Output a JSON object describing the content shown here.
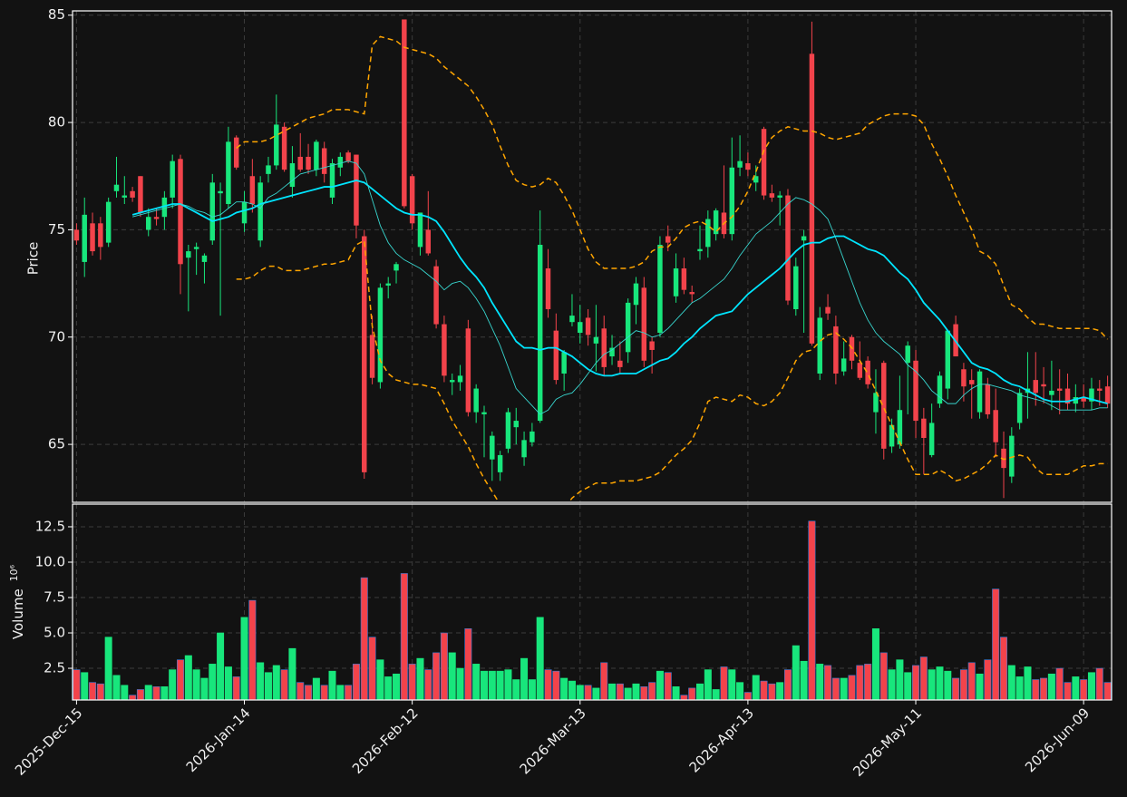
{
  "chart_data": {
    "type": "candlestick",
    "ylabel": "Price",
    "categories": [
      "2025-Dec-15",
      null,
      null,
      null,
      null,
      null,
      null,
      null,
      null,
      null,
      null,
      null,
      null,
      null,
      null,
      null,
      null,
      null,
      null,
      null,
      null,
      "2026-Jan-14",
      null,
      null,
      null,
      null,
      null,
      null,
      null,
      null,
      null,
      null,
      null,
      null,
      null,
      null,
      null,
      null,
      null,
      null,
      null,
      null,
      "2026-Feb-12",
      null,
      null,
      null,
      null,
      null,
      null,
      null,
      null,
      null,
      null,
      null,
      null,
      null,
      null,
      null,
      null,
      null,
      null,
      null,
      null,
      "2026-Mar-13",
      null,
      null,
      null,
      null,
      null,
      null,
      null,
      null,
      null,
      null,
      null,
      null,
      null,
      null,
      null,
      null,
      null,
      null,
      null,
      null,
      "2026-Apr-13",
      null,
      null,
      null,
      null,
      null,
      null,
      null,
      null,
      null,
      null,
      null,
      null,
      null,
      null,
      null,
      null,
      null,
      null,
      null,
      null,
      "2026-May-11",
      null,
      null,
      null,
      null,
      null,
      null,
      null,
      null,
      null,
      null,
      null,
      null,
      null,
      null,
      null,
      null,
      null,
      null,
      null,
      null,
      "2026-Jun-09",
      null,
      null,
      null
    ],
    "xlim": [
      -0.5,
      129.5
    ],
    "ylim": [
      62.3,
      85.2
    ],
    "yticks": [
      65,
      70,
      75,
      80,
      85
    ],
    "grid": true,
    "up_color": "#18e67c",
    "down_color": "#f2434b",
    "open": [
      75.0,
      73.5,
      75.3,
      75.3,
      74.4,
      76.8,
      76.5,
      76.8,
      77.5,
      75.0,
      75.6,
      75.6,
      76.5,
      78.3,
      73.7,
      74.1,
      73.5,
      74.5,
      76.7,
      76.2,
      79.3,
      75.3,
      77.5,
      74.5,
      77.6,
      78.0,
      79.8,
      77.0,
      78.4,
      78.4,
      77.8,
      78.8,
      76.5,
      77.9,
      78.6,
      78.5,
      74.7,
      70.1,
      67.9,
      72.4,
      73.1,
      84.8,
      77.5,
      74.2,
      75.0,
      73.3,
      70.6,
      67.9,
      67.9,
      70.4,
      66.5,
      66.4,
      64.3,
      63.7,
      64.8,
      65.8,
      64.4,
      65.1,
      66.1,
      73.2,
      70.3,
      68.3,
      70.7,
      70.2,
      70.9,
      69.7,
      70.4,
      69.1,
      68.9,
      69.3,
      71.5,
      72.3,
      69.8,
      70.2,
      74.7,
      71.9,
      73.2,
      72.1,
      74.0,
      74.2,
      74.8,
      75.8,
      74.8,
      77.9,
      78.1,
      77.2,
      79.7,
      76.7,
      76.5,
      76.6,
      71.3,
      74.5,
      83.2,
      68.3,
      71.4,
      70.5,
      68.4,
      70.0,
      68.8,
      68.9,
      66.5,
      68.8,
      64.9,
      65.0,
      68.8,
      68.9,
      66.2,
      64.5,
      66.9,
      67.6,
      70.6,
      68.5,
      68.0,
      66.5,
      67.8,
      66.6,
      64.8,
      63.5,
      66.0,
      67.4,
      68.0,
      67.8,
      67.3,
      67.6,
      67.6,
      66.9,
      67.2,
      67.0,
      67.6,
      67.7
    ],
    "high": [
      75.3,
      76.5,
      75.8,
      75.6,
      76.5,
      78.4,
      77.5,
      77.0,
      77.5,
      76.0,
      76.0,
      76.8,
      78.5,
      78.5,
      74.3,
      74.4,
      73.9,
      77.6,
      77.2,
      79.8,
      79.4,
      76.8,
      78.3,
      77.5,
      78.4,
      81.3,
      80.0,
      78.9,
      79.5,
      79.0,
      79.2,
      79.1,
      78.3,
      78.6,
      78.7,
      78.5,
      75.0,
      71.0,
      72.5,
      72.8,
      73.5,
      84.8,
      77.6,
      75.8,
      76.8,
      73.6,
      71.0,
      68.3,
      68.7,
      70.8,
      67.8,
      66.8,
      65.6,
      64.7,
      66.7,
      66.7,
      65.6,
      66.0,
      75.9,
      74.1,
      71.1,
      69.4,
      72.0,
      71.5,
      71.3,
      71.5,
      71.0,
      70.1,
      69.8,
      71.8,
      72.8,
      72.8,
      70.0,
      74.7,
      75.2,
      73.9,
      73.7,
      72.4,
      75.2,
      75.9,
      76.0,
      78.0,
      79.3,
      79.4,
      78.6,
      78.0,
      79.8,
      77.1,
      76.8,
      76.9,
      73.7,
      75.0,
      84.7,
      71.4,
      72.0,
      71.0,
      69.8,
      70.1,
      69.8,
      69.1,
      68.5,
      68.9,
      66.2,
      68.2,
      69.8,
      69.4,
      66.7,
      66.9,
      68.4,
      70.3,
      71.0,
      68.8,
      68.5,
      68.5,
      68.1,
      67.6,
      65.6,
      65.8,
      67.6,
      69.3,
      69.3,
      68.6,
      68.9,
      68.5,
      68.3,
      67.8,
      67.8,
      68.1,
      68.0,
      68.2
    ],
    "low": [
      74.3,
      72.8,
      73.8,
      73.6,
      74.2,
      76.5,
      76.2,
      76.3,
      75.6,
      74.7,
      75.2,
      75.0,
      76.0,
      72.0,
      71.2,
      72.9,
      72.5,
      74.3,
      71.0,
      76.0,
      77.8,
      74.9,
      75.8,
      74.2,
      77.2,
      77.8,
      77.7,
      76.5,
      77.7,
      77.6,
      77.5,
      77.2,
      76.2,
      77.5,
      78.1,
      74.6,
      63.4,
      67.8,
      67.6,
      71.8,
      72.5,
      76.0,
      75.0,
      73.8,
      73.8,
      70.4,
      67.9,
      67.3,
      67.5,
      66.3,
      66.0,
      64.4,
      63.3,
      63.3,
      64.6,
      65.0,
      64.0,
      64.9,
      66.0,
      70.9,
      67.8,
      67.5,
      70.5,
      69.7,
      69.6,
      68.4,
      68.2,
      68.7,
      68.3,
      68.8,
      70.6,
      68.6,
      68.3,
      70.0,
      74.0,
      71.6,
      72.0,
      71.6,
      73.6,
      73.7,
      74.5,
      74.6,
      74.5,
      77.5,
      77.5,
      76.8,
      76.4,
      76.3,
      75.2,
      71.5,
      71.0,
      70.2,
      69.6,
      68.0,
      70.8,
      67.8,
      68.2,
      68.5,
      68.0,
      67.6,
      65.5,
      64.3,
      64.6,
      64.8,
      66.4,
      65.3,
      63.6,
      64.4,
      66.7,
      67.1,
      69.1,
      67.0,
      66.2,
      66.2,
      66.2,
      64.4,
      62.5,
      63.2,
      65.7,
      66.2,
      66.8,
      66.9,
      66.6,
      66.4,
      66.6,
      66.5,
      66.7,
      66.6,
      66.8,
      66.7
    ],
    "close": [
      74.5,
      75.7,
      74.0,
      74.2,
      76.3,
      77.1,
      76.6,
      76.5,
      75.8,
      75.6,
      75.5,
      76.5,
      78.2,
      73.4,
      74.0,
      74.2,
      73.8,
      77.2,
      76.8,
      79.1,
      77.9,
      76.3,
      76.2,
      77.2,
      78.0,
      79.9,
      77.8,
      78.1,
      77.8,
      77.8,
      79.1,
      77.6,
      78.1,
      78.4,
      78.2,
      75.2,
      63.7,
      68.1,
      72.3,
      72.5,
      73.4,
      76.1,
      75.3,
      75.8,
      73.9,
      70.6,
      68.2,
      68.0,
      68.2,
      66.5,
      67.6,
      66.5,
      65.4,
      64.5,
      66.5,
      66.1,
      65.2,
      65.6,
      74.3,
      71.3,
      68.0,
      69.3,
      71.0,
      70.7,
      70.1,
      70.0,
      68.6,
      69.5,
      68.6,
      71.6,
      72.5,
      68.9,
      69.4,
      74.3,
      74.4,
      73.2,
      72.2,
      72.0,
      74.1,
      75.5,
      75.9,
      74.8,
      77.9,
      78.2,
      77.8,
      77.5,
      76.6,
      76.5,
      76.6,
      71.7,
      73.3,
      74.7,
      69.7,
      70.9,
      71.1,
      68.3,
      69.0,
      68.9,
      68.1,
      67.8,
      67.4,
      64.8,
      65.9,
      66.6,
      69.6,
      66.1,
      65.3,
      66.0,
      68.2,
      70.3,
      69.1,
      67.7,
      67.8,
      68.4,
      66.4,
      65.1,
      63.9,
      65.4,
      67.4,
      67.6,
      67.4,
      67.7,
      67.5,
      67.5,
      66.9,
      67.2,
      67.0,
      67.6,
      67.5,
      66.9
    ],
    "lines": [
      {
        "color": "#00e5ff",
        "width": 1.8,
        "values": [
          null,
          null,
          null,
          null,
          null,
          null,
          null,
          75.7,
          75.8,
          75.9,
          76.0,
          76.1,
          76.2,
          76.2,
          76.0,
          75.8,
          75.6,
          75.4,
          75.5,
          75.6,
          75.8,
          75.9,
          76.0,
          76.2,
          76.3,
          76.4,
          76.5,
          76.6,
          76.7,
          76.8,
          76.9,
          77.0,
          77.0,
          77.1,
          77.2,
          77.3,
          77.2,
          76.9,
          76.6,
          76.3,
          76.0,
          75.8,
          75.7,
          75.7,
          75.6,
          75.4,
          74.9,
          74.3,
          73.7,
          73.2,
          72.8,
          72.3,
          71.6,
          71.0,
          70.4,
          69.8,
          69.5,
          69.5,
          69.4,
          69.5,
          69.5,
          69.3,
          69.1,
          68.8,
          68.5,
          68.3,
          68.2,
          68.2,
          68.3,
          68.3,
          68.3,
          68.5,
          68.7,
          68.9,
          69.0,
          69.3,
          69.7,
          70.0,
          70.4,
          70.7,
          71.0,
          71.1,
          71.2,
          71.6,
          72.0,
          72.3,
          72.6,
          72.9,
          73.2,
          73.6,
          74.0,
          74.3,
          74.4,
          74.4,
          74.6,
          74.7,
          74.7,
          74.5,
          74.3,
          74.1,
          74.0,
          73.8,
          73.4,
          73.0,
          72.7,
          72.2,
          71.6,
          71.2,
          70.8,
          70.3,
          69.8,
          69.3,
          68.8,
          68.6,
          68.5,
          68.3,
          68.0,
          67.8,
          67.7,
          67.5,
          67.3,
          67.1,
          67.0,
          67.0,
          67.0,
          67.1,
          67.2,
          67.1,
          67.0,
          66.9
        ]
      },
      {
        "color": "#38d6cf",
        "width": 0.9,
        "values": [
          null,
          null,
          null,
          null,
          null,
          null,
          null,
          75.6,
          75.7,
          75.8,
          75.9,
          76.0,
          76.1,
          76.2,
          76.1,
          75.9,
          75.8,
          75.6,
          75.7,
          76.0,
          76.3,
          76.3,
          76.2,
          76.0,
          76.5,
          76.7,
          77.0,
          77.3,
          77.6,
          77.7,
          77.8,
          77.9,
          78.0,
          78.1,
          78.2,
          78.1,
          77.6,
          76.4,
          75.2,
          74.4,
          73.9,
          73.6,
          73.4,
          73.2,
          72.9,
          72.6,
          72.2,
          72.5,
          72.6,
          72.3,
          71.8,
          71.2,
          70.4,
          69.6,
          68.6,
          67.6,
          67.2,
          66.8,
          66.4,
          66.6,
          67.1,
          67.3,
          67.4,
          67.8,
          68.3,
          68.8,
          69.2,
          69.4,
          69.7,
          70.0,
          70.3,
          70.2,
          70.0,
          70.1,
          70.4,
          70.8,
          71.2,
          71.6,
          71.8,
          72.1,
          72.4,
          72.7,
          73.2,
          73.8,
          74.3,
          74.8,
          75.1,
          75.4,
          75.8,
          76.2,
          76.5,
          76.4,
          76.2,
          75.9,
          75.5,
          74.6,
          73.6,
          72.6,
          71.6,
          70.8,
          70.2,
          69.8,
          69.5,
          69.2,
          68.7,
          68.4,
          68.0,
          67.5,
          67.2,
          66.9,
          66.9,
          67.3,
          67.6,
          67.8,
          67.8,
          67.7,
          67.6,
          67.5,
          67.3,
          67.2,
          67.1,
          67.0,
          66.8,
          66.6,
          66.6,
          66.6,
          66.6,
          66.6,
          66.7,
          66.7
        ]
      },
      {
        "color": "#ffa500",
        "width": 1.5,
        "dashed": true,
        "values": [
          null,
          null,
          null,
          null,
          null,
          null,
          null,
          null,
          null,
          null,
          null,
          null,
          null,
          null,
          null,
          null,
          null,
          null,
          null,
          null,
          78.8,
          79.1,
          79.1,
          79.1,
          79.2,
          79.4,
          79.6,
          79.8,
          80.0,
          80.2,
          80.3,
          80.4,
          80.6,
          80.6,
          80.6,
          80.5,
          80.4,
          83.6,
          84.0,
          83.9,
          83.8,
          83.5,
          83.4,
          83.3,
          83.2,
          83.0,
          82.6,
          82.3,
          82.0,
          81.7,
          81.2,
          80.6,
          79.9,
          78.9,
          78.0,
          77.3,
          77.1,
          77.0,
          77.1,
          77.4,
          77.2,
          76.6,
          75.9,
          75.0,
          74.1,
          73.5,
          73.2,
          73.2,
          73.2,
          73.2,
          73.3,
          73.5,
          74.0,
          74.2,
          74.2,
          74.6,
          75.1,
          75.3,
          75.4,
          75.2,
          74.9,
          75.3,
          75.6,
          76.1,
          76.8,
          77.7,
          78.7,
          79.3,
          79.6,
          79.8,
          79.7,
          79.6,
          79.6,
          79.5,
          79.3,
          79.2,
          79.3,
          79.4,
          79.5,
          79.9,
          80.1,
          80.3,
          80.4,
          80.4,
          80.4,
          80.3,
          79.9,
          79.0,
          78.3,
          77.5,
          76.6,
          75.8,
          75.0,
          74.0,
          73.8,
          73.4,
          72.4,
          71.5,
          71.3,
          70.9,
          70.6,
          70.6,
          70.5,
          70.4,
          70.4,
          70.4,
          70.4,
          70.4,
          70.3,
          69.9
        ]
      },
      {
        "color": "#ffa500",
        "width": 1.5,
        "dashed": true,
        "values": [
          null,
          null,
          null,
          null,
          null,
          null,
          null,
          null,
          null,
          null,
          null,
          null,
          null,
          null,
          null,
          null,
          null,
          null,
          null,
          null,
          72.7,
          72.7,
          72.8,
          73.1,
          73.3,
          73.3,
          73.1,
          73.1,
          73.1,
          73.2,
          73.3,
          73.4,
          73.4,
          73.5,
          73.6,
          74.3,
          74.5,
          70.5,
          68.9,
          68.3,
          68.0,
          67.9,
          67.8,
          67.8,
          67.7,
          67.6,
          66.9,
          66.1,
          65.5,
          64.9,
          64.1,
          63.4,
          62.8,
          62.2,
          61.8,
          61.5,
          61.3,
          61.2,
          61.2,
          61.3,
          61.6,
          62.0,
          62.5,
          62.8,
          63.0,
          63.2,
          63.2,
          63.2,
          63.3,
          63.3,
          63.3,
          63.4,
          63.5,
          63.7,
          64.1,
          64.5,
          64.8,
          65.2,
          66.0,
          67.0,
          67.2,
          67.1,
          67.0,
          67.3,
          67.2,
          66.9,
          66.8,
          67.0,
          67.4,
          68.1,
          68.9,
          69.3,
          69.4,
          69.8,
          70.1,
          70.2,
          69.9,
          69.5,
          68.9,
          68.3,
          67.5,
          66.7,
          65.9,
          65.1,
          64.3,
          63.6,
          63.6,
          63.6,
          63.8,
          63.6,
          63.3,
          63.4,
          63.6,
          63.8,
          64.1,
          64.5,
          64.3,
          64.4,
          64.5,
          64.4,
          63.9,
          63.6,
          63.6,
          63.6,
          63.6,
          63.8,
          64.0,
          64.0,
          64.1,
          64.1
        ]
      }
    ],
    "volume": {
      "ylabel": "Volume",
      "offset_text": "10⁶",
      "edge_color": "#3b7bd6",
      "ylim": [
        0.26,
        14.1
      ],
      "yticks": [
        2.5,
        {
          "value": 5,
          "label": "5.0"
        },
        7.5,
        {
          "value": 10,
          "label": "10.0"
        },
        12.5
      ],
      "values": [
        2.4,
        2.2,
        1.5,
        1.4,
        4.7,
        2.0,
        1.3,
        0.6,
        1.0,
        1.3,
        1.2,
        1.2,
        2.4,
        3.1,
        3.4,
        2.4,
        1.8,
        2.8,
        5.0,
        2.6,
        1.9,
        6.1,
        7.3,
        2.9,
        2.2,
        2.7,
        2.4,
        3.9,
        1.5,
        1.3,
        1.8,
        1.3,
        2.3,
        1.3,
        1.3,
        2.8,
        8.9,
        4.7,
        3.1,
        1.9,
        2.1,
        9.2,
        2.8,
        3.2,
        2.4,
        3.6,
        5.0,
        3.6,
        2.5,
        5.3,
        2.8,
        2.3,
        2.3,
        2.3,
        2.4,
        1.7,
        3.2,
        1.7,
        6.1,
        2.4,
        2.3,
        1.8,
        1.6,
        1.3,
        1.3,
        1.1,
        2.9,
        1.4,
        1.4,
        1.1,
        1.4,
        1.2,
        1.5,
        2.3,
        2.2,
        1.2,
        0.6,
        1.1,
        1.4,
        2.4,
        1.0,
        2.6,
        2.4,
        1.5,
        0.8,
        2.0,
        1.6,
        1.4,
        1.5,
        2.4,
        4.1,
        3.0,
        12.9,
        2.8,
        2.7,
        1.8,
        1.8,
        2.0,
        2.7,
        2.8,
        5.3,
        3.6,
        2.4,
        3.1,
        2.2,
        2.7,
        3.3,
        2.4,
        2.6,
        2.3,
        1.8,
        2.4,
        2.9,
        2.1,
        3.1,
        8.1,
        4.7,
        2.7,
        1.9,
        2.6,
        1.7,
        1.8,
        2.1,
        2.5,
        1.5,
        1.9,
        1.7,
        2.2,
        2.5,
        1.5
      ]
    }
  }
}
